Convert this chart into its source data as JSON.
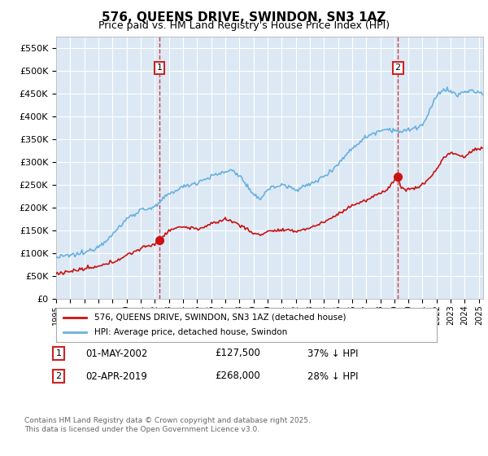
{
  "title": "576, QUEENS DRIVE, SWINDON, SN3 1AZ",
  "subtitle": "Price paid vs. HM Land Registry's House Price Index (HPI)",
  "bg_color": "#dce9f5",
  "hpi_color": "#6ab0de",
  "price_color": "#cc1111",
  "vline_color": "#cc2222",
  "ylim": [
    0,
    575000
  ],
  "yticks": [
    0,
    50000,
    100000,
    150000,
    200000,
    250000,
    300000,
    350000,
    400000,
    450000,
    500000,
    550000
  ],
  "xlim_start": 1995,
  "xlim_end": 2025.3,
  "annotation1_year": 2002.33,
  "annotation1_price_val": 127500,
  "annotation1_label": "1",
  "annotation1_date": "01-MAY-2002",
  "annotation1_price": "£127,500",
  "annotation1_hpi": "37% ↓ HPI",
  "annotation2_year": 2019.25,
  "annotation2_price_val": 268000,
  "annotation2_label": "2",
  "annotation2_date": "02-APR-2019",
  "annotation2_price": "£268,000",
  "annotation2_hpi": "28% ↓ HPI",
  "legend_label1": "576, QUEENS DRIVE, SWINDON, SN3 1AZ (detached house)",
  "legend_label2": "HPI: Average price, detached house, Swindon",
  "footnote": "Contains HM Land Registry data © Crown copyright and database right 2025.\nThis data is licensed under the Open Government Licence v3.0."
}
